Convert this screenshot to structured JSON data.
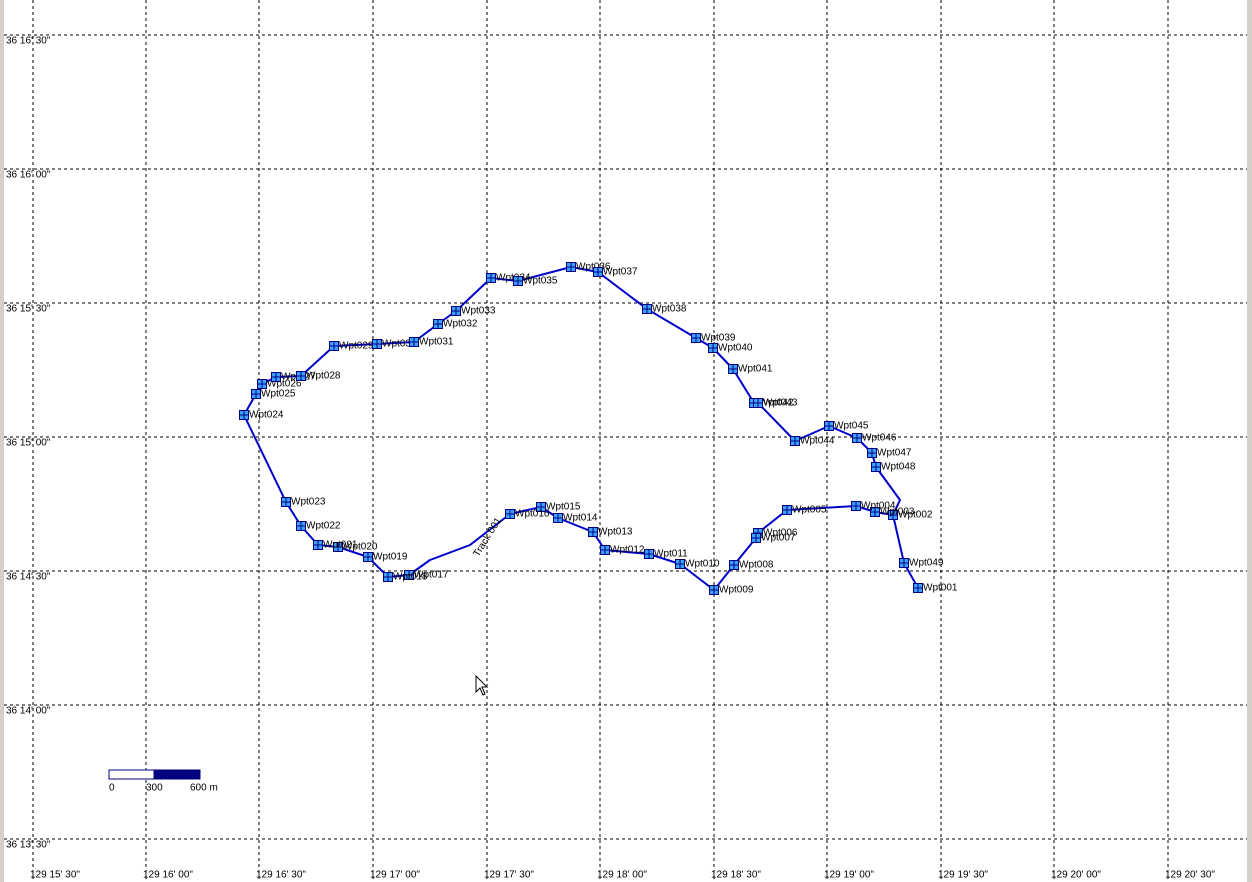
{
  "map": {
    "latitude_labels": [
      "36 16' 30\"",
      "36 16' 00\"",
      "36 15' 30\"",
      "36 15' 00\"",
      "36 14' 30\"",
      "36 14' 00\"",
      "36 13' 30\""
    ],
    "longitude_labels": [
      "129 15' 30\"",
      "129 16' 00\"",
      "129 16' 30\"",
      "129 17' 00\"",
      "129 17' 30\"",
      "129 18' 00\"",
      "129 18' 30\"",
      "129 19' 00\"",
      "129 19' 30\"",
      "129 20' 00\"",
      "129 20' 30\""
    ],
    "track": {
      "name": "Track 001"
    },
    "waypoints": [
      "Wpt001",
      "Wpt002",
      "Wpt003",
      "Wpt004",
      "Wpt005",
      "Wpt006",
      "Wpt007",
      "Wpt008",
      "Wpt009",
      "Wpt010",
      "Wpt011",
      "Wpt012",
      "Wpt013",
      "Wpt014",
      "Wpt015",
      "Wpt016",
      "Wpt017",
      "Wpt018",
      "Wpt019",
      "Wpt020",
      "Wpt021",
      "Wpt022",
      "Wpt023",
      "Wpt024",
      "Wpt025",
      "Wpt026",
      "Wpt027",
      "Wpt028",
      "Wpt029",
      "Wpt030",
      "Wpt031",
      "Wpt032",
      "Wpt033",
      "Wpt034",
      "Wpt035",
      "Wpt036",
      "Wpt037",
      "Wpt038",
      "Wpt039",
      "Wpt040",
      "Wpt041",
      "Wpt042",
      "Wpt043",
      "Wpt044",
      "Wpt045",
      "Wpt046",
      "Wpt047",
      "Wpt048",
      "Wpt049"
    ],
    "scale": {
      "labels": [
        "0",
        "300",
        "600 m"
      ]
    }
  }
}
